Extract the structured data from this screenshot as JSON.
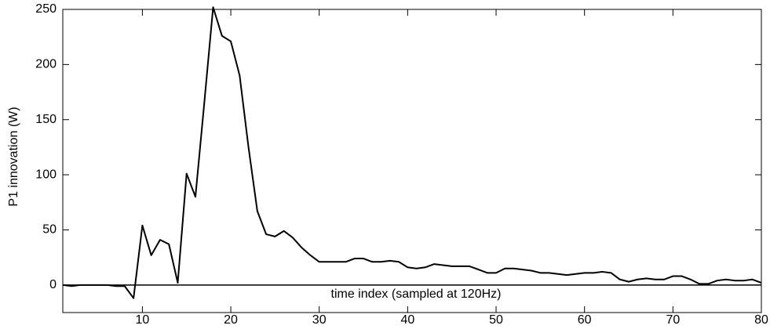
{
  "chart_data": {
    "type": "line",
    "xlabel": "time index (sampled at 120Hz)",
    "ylabel": "P1 innovation (W)",
    "x": [
      1,
      2,
      3,
      4,
      5,
      6,
      7,
      8,
      9,
      10,
      11,
      12,
      13,
      14,
      15,
      16,
      17,
      18,
      19,
      20,
      21,
      22,
      23,
      24,
      25,
      26,
      27,
      28,
      29,
      30,
      31,
      32,
      33,
      34,
      35,
      36,
      37,
      38,
      39,
      40,
      41,
      42,
      43,
      44,
      45,
      46,
      47,
      48,
      49,
      50,
      51,
      52,
      53,
      54,
      55,
      56,
      57,
      58,
      59,
      60,
      61,
      62,
      63,
      64,
      65,
      66,
      67,
      68,
      69,
      70,
      71,
      72,
      73,
      74,
      75,
      76,
      77,
      78,
      79,
      80
    ],
    "series": [
      {
        "color": "#000000",
        "values": [
          0,
          -1,
          0,
          0,
          0,
          0,
          -1,
          -1,
          -12,
          54,
          27,
          41,
          37,
          2,
          101,
          80,
          165,
          252,
          226,
          221,
          190,
          125,
          67,
          46,
          44,
          49,
          43,
          34,
          27,
          21,
          21,
          21,
          21,
          24,
          24,
          21,
          21,
          22,
          21,
          16,
          15,
          16,
          19,
          18,
          17,
          17,
          17,
          14,
          11,
          11,
          15,
          15,
          14,
          13,
          11,
          11,
          10,
          9,
          10,
          11,
          11,
          12,
          11,
          5,
          3,
          5,
          6,
          5,
          5,
          8,
          8,
          5,
          1,
          1,
          4,
          5,
          4,
          4,
          5,
          2
        ]
      }
    ],
    "xlim": [
      1,
      80
    ],
    "ylim": [
      -25,
      250
    ],
    "xticks": [
      10,
      20,
      30,
      40,
      50,
      60,
      70,
      80
    ],
    "yticks": [
      0,
      50,
      100,
      150,
      200,
      250
    ],
    "grid": false
  }
}
